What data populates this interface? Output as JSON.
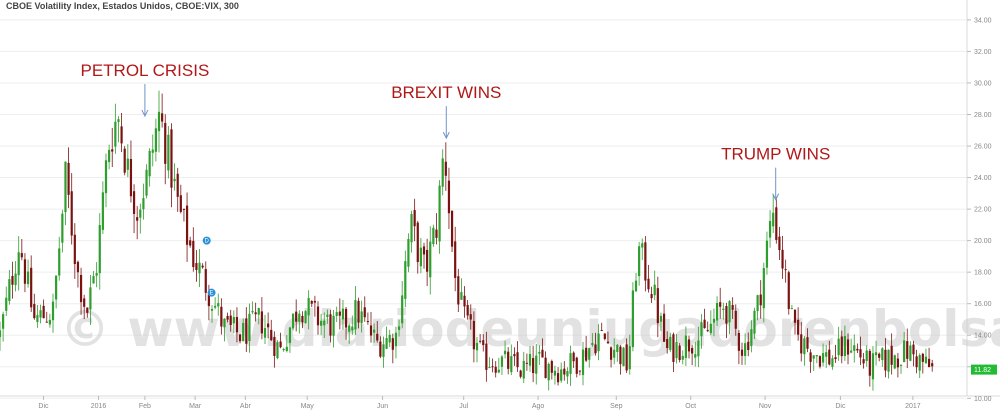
{
  "header": {
    "title": "CBOE Volatility Index, Estados Unidos, CBOE:VIX, 300"
  },
  "watermark": "© www.diariodeunjugadorenbolsa.com",
  "colors": {
    "up": "#2e9e2e",
    "down": "#7a1212",
    "wick": "#555555",
    "annotation": "#b01818",
    "arrow": "#6f93c8",
    "last": "#22bb33",
    "grid": "#eeeeee",
    "event": "#2a8fd6"
  },
  "chart_data": {
    "type": "candlestick",
    "title": "CBOE Volatility Index, Estados Unidos, CBOE:VIX, 300",
    "xlabel": "",
    "ylabel": "",
    "ylim": [
      10.4,
      34.5
    ],
    "y_ticks": [
      "34.00",
      "32.00",
      "30.00",
      "28.00",
      "26.00",
      "24.00",
      "22.00",
      "20.00",
      "18.00",
      "16.00",
      "14.00",
      "12.00",
      "10.00"
    ],
    "y_tick_values": [
      34,
      32,
      30,
      28,
      26,
      24,
      22,
      20,
      18,
      16,
      14,
      12,
      10
    ],
    "x_ticks": [
      {
        "label": "Dic",
        "pos": 0.045
      },
      {
        "label": "2016",
        "pos": 0.102
      },
      {
        "label": "Feb",
        "pos": 0.15
      },
      {
        "label": "Mar",
        "pos": 0.202
      },
      {
        "label": "Abr",
        "pos": 0.254
      },
      {
        "label": "May",
        "pos": 0.318
      },
      {
        "label": "Jun",
        "pos": 0.396
      },
      {
        "label": "Jul",
        "pos": 0.48
      },
      {
        "label": "Ago",
        "pos": 0.557
      },
      {
        "label": "Sep",
        "pos": 0.638
      },
      {
        "label": "Oct",
        "pos": 0.715
      },
      {
        "label": "Nov",
        "pos": 0.792
      },
      {
        "label": "Dic",
        "pos": 0.87
      },
      {
        "label": "2017",
        "pos": 0.945
      }
    ],
    "last_value": "11.82",
    "anchors": [
      [
        0.0,
        14.0
      ],
      [
        0.02,
        20.0
      ],
      [
        0.035,
        15.0
      ],
      [
        0.055,
        15.5
      ],
      [
        0.068,
        24.0
      ],
      [
        0.08,
        18.0
      ],
      [
        0.09,
        15.5
      ],
      [
        0.1,
        18.5
      ],
      [
        0.112,
        26.0
      ],
      [
        0.122,
        28.0
      ],
      [
        0.132,
        24.5
      ],
      [
        0.142,
        22.0
      ],
      [
        0.152,
        24.0
      ],
      [
        0.165,
        28.0
      ],
      [
        0.172,
        26.0
      ],
      [
        0.185,
        22.0
      ],
      [
        0.2,
        19.0
      ],
      [
        0.215,
        17.0
      ],
      [
        0.232,
        14.5
      ],
      [
        0.25,
        14.0
      ],
      [
        0.27,
        15.0
      ],
      [
        0.29,
        13.0
      ],
      [
        0.31,
        16.0
      ],
      [
        0.33,
        15.0
      ],
      [
        0.35,
        14.5
      ],
      [
        0.37,
        15.5
      ],
      [
        0.39,
        13.5
      ],
      [
        0.41,
        14.0
      ],
      [
        0.425,
        21.0
      ],
      [
        0.44,
        18.0
      ],
      [
        0.452,
        21.0
      ],
      [
        0.46,
        26.0
      ],
      [
        0.47,
        18.0
      ],
      [
        0.48,
        15.0
      ],
      [
        0.5,
        12.5
      ],
      [
        0.52,
        12.3
      ],
      [
        0.54,
        11.8
      ],
      [
        0.56,
        12.3
      ],
      [
        0.58,
        11.8
      ],
      [
        0.6,
        12.5
      ],
      [
        0.62,
        14.0
      ],
      [
        0.64,
        13.0
      ],
      [
        0.65,
        12.0
      ],
      [
        0.66,
        19.5
      ],
      [
        0.675,
        17.0
      ],
      [
        0.69,
        13.0
      ],
      [
        0.71,
        13.5
      ],
      [
        0.73,
        14.0
      ],
      [
        0.75,
        16.0
      ],
      [
        0.77,
        13.0
      ],
      [
        0.785,
        16.0
      ],
      [
        0.8,
        22.0
      ],
      [
        0.812,
        18.0
      ],
      [
        0.822,
        14.0
      ],
      [
        0.84,
        13.0
      ],
      [
        0.86,
        12.5
      ],
      [
        0.88,
        13.5
      ],
      [
        0.9,
        12.0
      ],
      [
        0.92,
        12.5
      ],
      [
        0.94,
        13.0
      ],
      [
        0.95,
        12.5
      ],
      [
        0.965,
        11.8
      ]
    ],
    "annotations": [
      {
        "text": "PETROL CRISIS",
        "pos": 0.15,
        "value": 27.9
      },
      {
        "text": "BREXIT WINS",
        "pos": 0.462,
        "value": 26.5
      },
      {
        "text": "TRUMP WINS",
        "pos": 0.803,
        "value": 22.6
      }
    ],
    "events": [
      {
        "label": "D",
        "pos": 0.214,
        "value": 20.0
      },
      {
        "label": "E",
        "pos": 0.219,
        "value": 16.7
      }
    ]
  }
}
